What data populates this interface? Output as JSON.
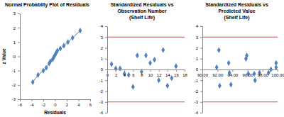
{
  "chart_data": [
    {
      "type": "scatter",
      "title": "Normal Probablity Plot of Residuals",
      "xlabel": "Residuals",
      "ylabel": "z Value",
      "xlim": [
        -6,
        6
      ],
      "xticks": [
        -6,
        -4,
        -2,
        0,
        2,
        4,
        6
      ],
      "ylim": [
        -3,
        3
      ],
      "yticks": [
        -3,
        -2,
        -1,
        0,
        1,
        2,
        3
      ],
      "series": [
        {
          "color": "#4f81bd",
          "marker": "diamond",
          "line_style": "solid",
          "x": [
            -3.8,
            -2.9,
            -2.0,
            -1.5,
            -1.0,
            -0.8,
            -0.4,
            -0.2,
            0.0,
            0.2,
            0.4,
            0.9,
            1.5,
            2.2,
            3.0,
            4.3
          ],
          "values": [
            -1.8,
            -1.3,
            -1.0,
            -0.8,
            -0.5,
            -0.35,
            -0.2,
            -0.05,
            0.1,
            0.25,
            0.4,
            0.55,
            0.75,
            1.0,
            1.3,
            1.8
          ]
        }
      ]
    },
    {
      "type": "scatter",
      "title": [
        "Standardized Residuals vs",
        "Observation Number",
        "(Shelf Life)"
      ],
      "xlim": [
        0,
        18
      ],
      "xticks": [
        0,
        2,
        4,
        6,
        8,
        10,
        12,
        14,
        16,
        18
      ],
      "ylim": [
        -4,
        4
      ],
      "yticks": [
        -4,
        -3,
        -2,
        -1,
        0,
        1,
        2,
        3,
        4
      ],
      "reference_lines": {
        "values": [
          -3,
          3
        ],
        "color": "#c0504d"
      },
      "series": [
        {
          "color": "#4f81bd",
          "marker": "diamond",
          "x": [
            1,
            2,
            3,
            4,
            5,
            6,
            7,
            8,
            9,
            10,
            11,
            12,
            13,
            14,
            15,
            16
          ],
          "values": [
            0.5,
            0.1,
            0.1,
            -0.4,
            -0.5,
            -1.6,
            1.3,
            -0.2,
            1.3,
            0.6,
            0.9,
            -1.0,
            1.8,
            -1.5,
            -0.8,
            0.3
          ]
        }
      ]
    },
    {
      "type": "scatter",
      "title": [
        "Standardized Residuals vs",
        "Predicted Value",
        "(Shelf Life)"
      ],
      "xlim": [
        90,
        100
      ],
      "xticks": [
        {
          "value": 90,
          "label": "90.00"
        },
        {
          "value": 92,
          "label": "92.00"
        },
        {
          "value": 94,
          "label": "94.00"
        },
        {
          "value": 96,
          "label": "96.00"
        },
        {
          "value": 98,
          "label": "98.00"
        },
        {
          "value": 100,
          "label": "100.00"
        }
      ],
      "ylim": [
        -4,
        4
      ],
      "yticks": [
        -4,
        -3,
        -2,
        -1,
        0,
        1,
        2,
        3,
        4
      ],
      "reference_lines": {
        "values": [
          -3,
          3
        ],
        "color": "#c0504d"
      },
      "series": [
        {
          "color": "#4f81bd",
          "marker": "diamond",
          "x": [
            91.9,
            92.2,
            92.3,
            93.5,
            93.6,
            93.8,
            95.8,
            95.9,
            96.1,
            96.9,
            97.0,
            97.6,
            98.8,
            99.1,
            99.8,
            99.8
          ],
          "values": [
            0.2,
            1.8,
            -1.5,
            0.6,
            -0.3,
            -1.4,
            1.0,
            1.3,
            -0.4,
            -0.4,
            -1.0,
            -0.3,
            -0.3,
            0.0,
            0.6,
            0.2
          ]
        }
      ]
    }
  ]
}
